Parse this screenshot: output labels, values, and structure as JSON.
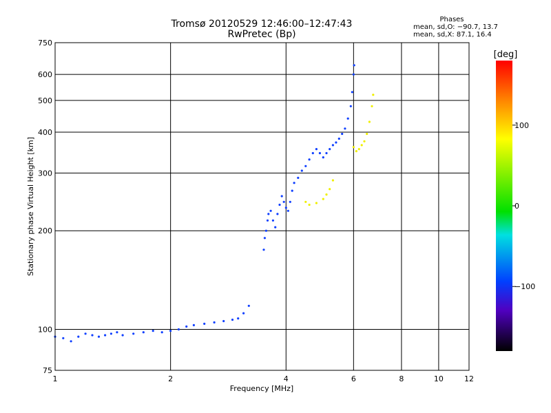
{
  "header": {
    "title_line1": "Tromsø 20120529 12:46:00–12:47:43",
    "title_line2": "RwPretec (Bp)"
  },
  "phases": {
    "heading": "Phases",
    "line1": "mean, sd,O: −90.7, 13.7",
    "line2": "mean, sd,X:  87.1, 16.4"
  },
  "chart_data": {
    "type": "scatter",
    "title": "Tromsø 20120529 12:46:00–12:47:43",
    "subtitle": "RwPretec (Bp)",
    "xlabel": "Frequency [MHz]",
    "ylabel": "Stationary phase Virtual Height [km]",
    "x_scale": "log",
    "y_scale": "log",
    "xlim": [
      1,
      12
    ],
    "ylim": [
      75,
      750
    ],
    "x_ticks": [
      "1",
      "2",
      "4",
      "6",
      "8",
      "10",
      "12"
    ],
    "x_tick_values": [
      1,
      2,
      4,
      6,
      8,
      10,
      12
    ],
    "y_ticks": [
      "75",
      "100",
      "200",
      "300",
      "400",
      "500",
      "600",
      "750"
    ],
    "y_tick_values": [
      75,
      100,
      200,
      300,
      400,
      500,
      600,
      750
    ],
    "grid": true,
    "colorbar": {
      "label": "[deg]",
      "range": [
        -180,
        180
      ],
      "ticks": [
        "100",
        "0",
        "−100"
      ],
      "tick_values": [
        100,
        0,
        -100
      ]
    },
    "series": [
      {
        "points": [
          [
            1.0,
            95
          ],
          [
            1.05,
            94
          ],
          [
            1.1,
            92
          ],
          [
            1.15,
            95
          ],
          [
            1.2,
            97
          ],
          [
            1.25,
            96
          ],
          [
            1.3,
            95
          ],
          [
            1.35,
            96
          ],
          [
            1.4,
            97
          ],
          [
            1.45,
            98
          ],
          [
            1.5,
            96
          ],
          [
            1.6,
            97
          ],
          [
            1.7,
            98
          ],
          [
            1.8,
            99
          ],
          [
            1.9,
            98
          ],
          [
            2.0,
            99
          ],
          [
            2.1,
            100
          ],
          [
            2.2,
            102
          ],
          [
            2.3,
            103
          ],
          [
            2.45,
            104
          ],
          [
            2.6,
            105
          ],
          [
            2.75,
            106
          ],
          [
            2.9,
            107
          ],
          [
            3.0,
            108
          ],
          [
            3.1,
            112
          ],
          [
            3.2,
            118
          ],
          [
            3.5,
            175
          ],
          [
            3.52,
            190
          ],
          [
            3.55,
            200
          ],
          [
            3.58,
            215
          ],
          [
            3.6,
            225
          ],
          [
            3.65,
            230
          ],
          [
            3.7,
            215
          ],
          [
            3.75,
            205
          ],
          [
            3.8,
            225
          ],
          [
            3.85,
            240
          ],
          [
            3.9,
            255
          ],
          [
            3.95,
            245
          ],
          [
            4.0,
            235
          ],
          [
            4.05,
            230
          ],
          [
            4.1,
            245
          ],
          [
            4.15,
            265
          ],
          [
            4.2,
            280
          ],
          [
            4.3,
            290
          ],
          [
            4.4,
            305
          ],
          [
            4.5,
            315
          ],
          [
            4.6,
            330
          ],
          [
            4.7,
            345
          ],
          [
            4.8,
            355
          ],
          [
            4.9,
            345
          ],
          [
            5.0,
            335
          ],
          [
            5.1,
            345
          ],
          [
            5.2,
            355
          ],
          [
            5.3,
            365
          ],
          [
            5.4,
            372
          ],
          [
            5.5,
            382
          ],
          [
            5.6,
            395
          ],
          [
            5.7,
            410
          ],
          [
            5.8,
            440
          ],
          [
            5.9,
            480
          ],
          [
            5.95,
            530
          ],
          [
            6.0,
            600
          ],
          [
            6.02,
            640
          ]
        ],
        "phase_deg": -95
      },
      {
        "points": [
          [
            4.5,
            245
          ],
          [
            4.6,
            240
          ],
          [
            4.8,
            243
          ],
          [
            5.0,
            250
          ],
          [
            5.1,
            258
          ],
          [
            5.2,
            268
          ],
          [
            5.3,
            285
          ],
          [
            6.0,
            360
          ],
          [
            6.1,
            350
          ],
          [
            6.2,
            355
          ],
          [
            6.3,
            365
          ],
          [
            6.4,
            375
          ],
          [
            6.5,
            395
          ],
          [
            6.6,
            430
          ],
          [
            6.7,
            480
          ],
          [
            6.75,
            520
          ]
        ],
        "phase_deg": 95
      }
    ],
    "annotations": []
  }
}
